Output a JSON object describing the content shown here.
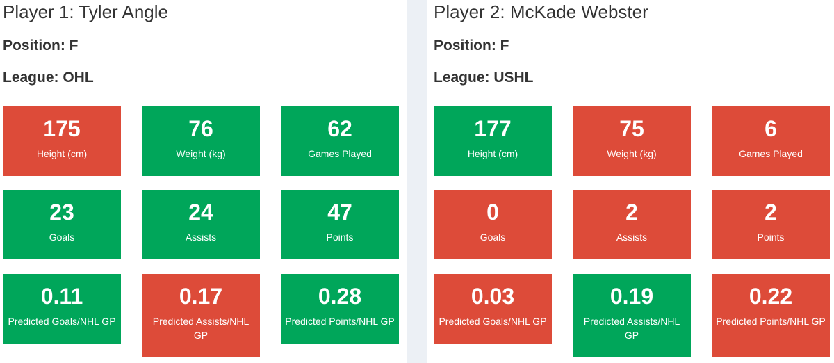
{
  "players": [
    {
      "title": "Player 1: Tyler Angle",
      "position": "Position: F",
      "league": "League: OHL",
      "stats": {
        "height": {
          "value": "175",
          "label": "Height (cm)",
          "status": "bad",
          "color": "#dd4b39"
        },
        "weight": {
          "value": "76",
          "label": "Weight (kg)",
          "status": "good",
          "color": "#00a65a"
        },
        "games_played": {
          "value": "62",
          "label": "Games Played",
          "status": "good",
          "color": "#00a65a"
        },
        "goals": {
          "value": "23",
          "label": "Goals",
          "status": "good",
          "color": "#00a65a"
        },
        "assists": {
          "value": "24",
          "label": "Assists",
          "status": "good",
          "color": "#00a65a"
        },
        "points": {
          "value": "47",
          "label": "Points",
          "status": "good",
          "color": "#00a65a"
        },
        "pred_goals": {
          "value": "0.11",
          "label": "Predicted Goals/NHL GP",
          "status": "good",
          "color": "#00a65a"
        },
        "pred_assists": {
          "value": "0.17",
          "label": "Predicted Assists/NHL GP",
          "status": "bad",
          "color": "#dd4b39"
        },
        "pred_points": {
          "value": "0.28",
          "label": "Predicted Points/NHL GP",
          "status": "good",
          "color": "#00a65a"
        }
      }
    },
    {
      "title": "Player 2: McKade Webster",
      "position": "Position: F",
      "league": "League: USHL",
      "stats": {
        "height": {
          "value": "177",
          "label": "Height (cm)",
          "status": "good",
          "color": "#00a65a"
        },
        "weight": {
          "value": "75",
          "label": "Weight (kg)",
          "status": "bad",
          "color": "#dd4b39"
        },
        "games_played": {
          "value": "6",
          "label": "Games Played",
          "status": "bad",
          "color": "#dd4b39"
        },
        "goals": {
          "value": "0",
          "label": "Goals",
          "status": "bad",
          "color": "#dd4b39"
        },
        "assists": {
          "value": "2",
          "label": "Assists",
          "status": "bad",
          "color": "#dd4b39"
        },
        "points": {
          "value": "2",
          "label": "Points",
          "status": "bad",
          "color": "#dd4b39"
        },
        "pred_goals": {
          "value": "0.03",
          "label": "Predicted Goals/NHL GP",
          "status": "bad",
          "color": "#dd4b39"
        },
        "pred_assists": {
          "value": "0.19",
          "label": "Predicted Assists/NHL GP",
          "status": "good",
          "color": "#00a65a"
        },
        "pred_points": {
          "value": "0.22",
          "label": "Predicted Points/NHL GP",
          "status": "bad",
          "color": "#dd4b39"
        }
      }
    }
  ]
}
